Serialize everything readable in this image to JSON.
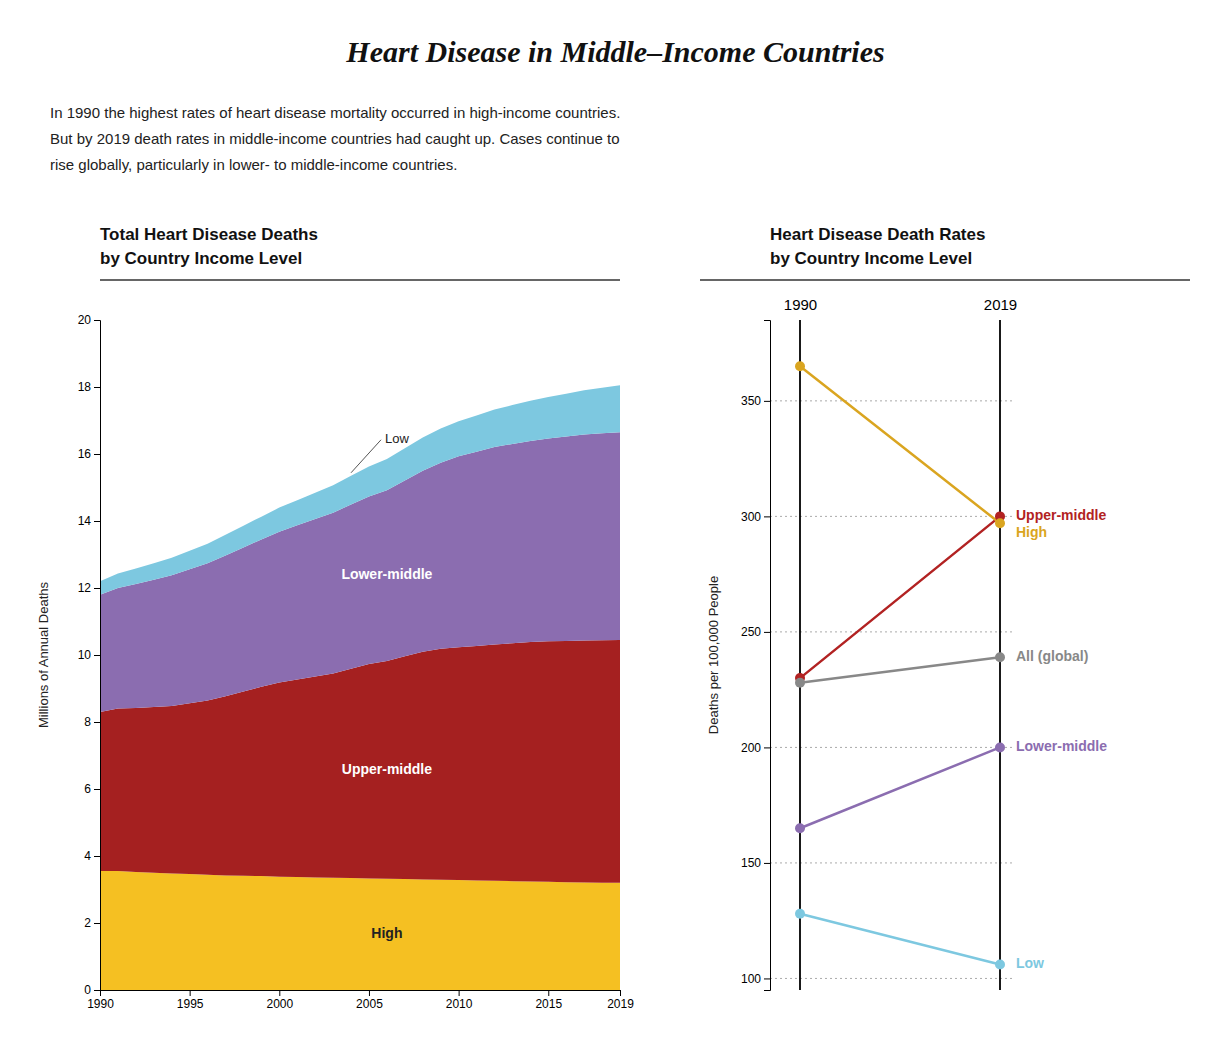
{
  "title": "Heart Disease in Middle–Income Countries",
  "subtitle": [
    "In 1990 the highest rates of heart disease mortality occurred in high-income countries.",
    "But by 2019 death rates in middle-income countries had caught up. Cases continue to",
    "rise globally, particularly in lower- to middle-income countries."
  ],
  "chart_data": [
    {
      "type": "area",
      "stacked": true,
      "title": [
        "Total Heart Disease Deaths",
        "by Country Income Level"
      ],
      "ylabel": "Millions of Annual Deaths",
      "x": [
        1990,
        1991,
        1992,
        1993,
        1994,
        1995,
        1996,
        1997,
        1998,
        1999,
        2000,
        2001,
        2002,
        2003,
        2004,
        2005,
        2006,
        2007,
        2008,
        2009,
        2010,
        2011,
        2012,
        2013,
        2014,
        2015,
        2016,
        2017,
        2018,
        2019
      ],
      "series": [
        {
          "name": "High",
          "color": "#F5C022",
          "values": [
            3.55,
            3.55,
            3.52,
            3.5,
            3.48,
            3.46,
            3.44,
            3.42,
            3.41,
            3.4,
            3.38,
            3.37,
            3.36,
            3.35,
            3.34,
            3.33,
            3.32,
            3.31,
            3.3,
            3.29,
            3.28,
            3.27,
            3.26,
            3.25,
            3.24,
            3.23,
            3.22,
            3.21,
            3.2,
            3.2
          ]
        },
        {
          "name": "Upper-middle",
          "color": "#A52020",
          "values": [
            4.75,
            4.85,
            4.9,
            4.95,
            5.0,
            5.1,
            5.2,
            5.35,
            5.5,
            5.65,
            5.8,
            5.9,
            6.0,
            6.1,
            6.25,
            6.4,
            6.5,
            6.65,
            6.8,
            6.9,
            6.95,
            7.0,
            7.05,
            7.1,
            7.15,
            7.18,
            7.2,
            7.22,
            7.24,
            7.25
          ]
        },
        {
          "name": "Lower-middle",
          "color": "#8B6DB0",
          "values": [
            3.5,
            3.6,
            3.7,
            3.8,
            3.9,
            4.0,
            4.1,
            4.2,
            4.3,
            4.4,
            4.5,
            4.6,
            4.7,
            4.8,
            4.9,
            5.0,
            5.1,
            5.25,
            5.4,
            5.55,
            5.7,
            5.8,
            5.9,
            5.95,
            6.0,
            6.05,
            6.1,
            6.15,
            6.18,
            6.2
          ]
        },
        {
          "name": "Low",
          "color": "#7DC8E0",
          "values": [
            0.4,
            0.43,
            0.46,
            0.49,
            0.52,
            0.55,
            0.58,
            0.62,
            0.65,
            0.68,
            0.72,
            0.75,
            0.78,
            0.82,
            0.86,
            0.9,
            0.93,
            0.96,
            0.99,
            1.02,
            1.05,
            1.08,
            1.12,
            1.16,
            1.2,
            1.24,
            1.28,
            1.32,
            1.36,
            1.4
          ]
        }
      ],
      "xlim": [
        1990,
        2019
      ],
      "xticks": [
        1990,
        1995,
        2000,
        2005,
        2010,
        2015,
        2019
      ],
      "ylim": [
        0,
        20
      ],
      "yticks": [
        0,
        2,
        4,
        6,
        8,
        10,
        12,
        14,
        16,
        18,
        20
      ],
      "grid": false
    },
    {
      "type": "line",
      "title": [
        "Heart Disease Death Rates",
        "by Country Income Level"
      ],
      "ylabel": "Deaths per 100,000 People",
      "categories": [
        "1990",
        "2019"
      ],
      "series": [
        {
          "name": "Upper-middle",
          "color": "#B22222",
          "marker": "circle",
          "values": [
            230,
            300
          ]
        },
        {
          "name": "High",
          "color": "#DAA520",
          "marker": "circle",
          "values": [
            365,
            297
          ]
        },
        {
          "name": "All (global)",
          "color": "#888888",
          "marker": "circle",
          "values": [
            228,
            239
          ]
        },
        {
          "name": "Lower-middle",
          "color": "#8B6DB0",
          "marker": "circle",
          "values": [
            165,
            200
          ]
        },
        {
          "name": "Low",
          "color": "#7DC8E0",
          "marker": "circle",
          "values": [
            128,
            106
          ]
        }
      ],
      "ylim": [
        95,
        385
      ],
      "yticks": [
        100,
        150,
        200,
        250,
        300,
        350
      ],
      "grid": true
    }
  ]
}
